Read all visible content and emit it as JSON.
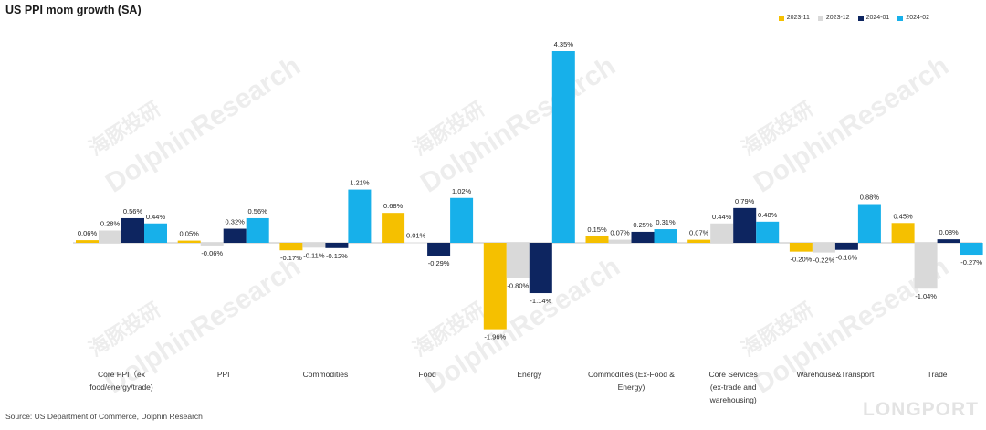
{
  "title": "US PPI mom growth (SA)",
  "source": "Source: US Department of Commerce, Dolphin Research",
  "watermark": "DolphinResearch",
  "watermark_cn": "海豚投研",
  "brand": "LONGPORT",
  "colors": {
    "2023-11": "#f5c000",
    "2023-12": "#d9d9d9",
    "2024-01": "#0d2560",
    "2024-02": "#17b0ea"
  },
  "chart_data": {
    "type": "bar",
    "title": "US PPI mom growth (SA)",
    "categories": [
      "Core PPI（ex food/energy/trade)",
      "PPI",
      "Commodities",
      "Food",
      "Energy",
      "Commodities (Ex-Food & Energy)",
      "Core Services (ex-trade and warehousing)",
      "Warehouse&Transport",
      "Trade"
    ],
    "series": [
      {
        "name": "2023-11",
        "values": [
          0.06,
          0.05,
          -0.17,
          0.68,
          -1.96,
          0.15,
          0.07,
          -0.2,
          0.45
        ]
      },
      {
        "name": "2023-12",
        "values": [
          0.28,
          -0.06,
          -0.11,
          0.01,
          -0.8,
          0.07,
          0.44,
          -0.22,
          -1.04
        ]
      },
      {
        "name": "2024-01",
        "values": [
          0.56,
          0.32,
          -0.12,
          -0.29,
          -1.14,
          0.25,
          0.79,
          -0.16,
          0.08
        ]
      },
      {
        "name": "2024-02",
        "values": [
          0.44,
          0.56,
          1.21,
          1.02,
          4.35,
          0.31,
          0.48,
          0.88,
          -0.27
        ]
      }
    ],
    "data_labels": [
      [
        "0.06%",
        "0.05%",
        "-0.17%",
        "0.68%",
        "-1.96%",
        "0.15%",
        "0.07%",
        "-0.20%",
        "0.45%"
      ],
      [
        "0.28%",
        "-0.06%",
        "-0.11%",
        "0.01%",
        "-0.80%",
        "0.07%",
        "0.44%",
        "-0.22%",
        "-1.04%"
      ],
      [
        "0.56%",
        "0.32%",
        "-0.12%",
        "-0.29%",
        "-1.14%",
        "0.25%",
        "0.79%",
        "-0.16%",
        "0.08%"
      ],
      [
        "0.44%",
        "0.56%",
        "1.21%",
        "1.02%",
        "4.35%",
        "0.31%",
        "0.48%",
        "0.88%",
        "-0.27%"
      ]
    ],
    "xlabel": "",
    "ylabel": "",
    "ylim": [
      -2.3,
      4.7
    ],
    "grid": false,
    "legend": "top-right"
  }
}
